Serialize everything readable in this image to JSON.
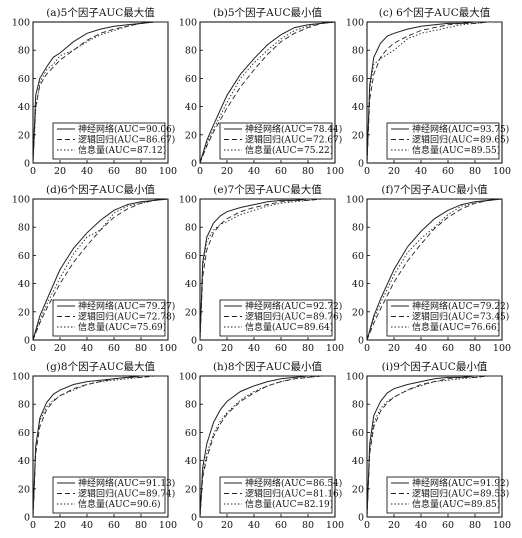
{
  "chart_data": [
    {
      "type": "line",
      "title": "(a)5个因子AUC最大值",
      "xlim": [
        0,
        100
      ],
      "ylim": [
        0,
        100
      ],
      "xticks": [
        "0",
        "20",
        "40",
        "60",
        "80",
        "100"
      ],
      "yticks": [
        "0",
        "20",
        "40",
        "60",
        "80",
        "100"
      ],
      "legend_position": "bottom-right",
      "series": [
        {
          "name": "神经网络(AUC=90.06)",
          "x": [
            0,
            2,
            5,
            10,
            15,
            20,
            30,
            40,
            50,
            60,
            70,
            80,
            90,
            100
          ],
          "y": [
            0,
            48,
            60,
            68,
            75,
            78,
            86,
            92,
            95,
            97,
            98,
            99,
            100,
            100
          ]
        },
        {
          "name": "逻辑回归(AUC=86.67)",
          "x": [
            0,
            2,
            5,
            10,
            15,
            20,
            30,
            40,
            50,
            60,
            70,
            80,
            90,
            100
          ],
          "y": [
            0,
            40,
            55,
            63,
            68,
            73,
            80,
            87,
            92,
            95,
            97,
            99,
            100,
            100
          ]
        },
        {
          "name": "信息量(AUC=87.12)",
          "x": [
            0,
            2,
            5,
            10,
            15,
            20,
            30,
            40,
            50,
            60,
            70,
            80,
            90,
            100
          ],
          "y": [
            0,
            38,
            57,
            66,
            70,
            76,
            80,
            86,
            91,
            94,
            97,
            99,
            100,
            100
          ]
        }
      ]
    },
    {
      "type": "line",
      "title": "(b)5个因子AUC最小值",
      "xlim": [
        0,
        100
      ],
      "ylim": [
        0,
        100
      ],
      "xticks": [
        "0",
        "20",
        "40",
        "60",
        "80",
        "100"
      ],
      "yticks": [
        "0",
        "20",
        "40",
        "60",
        "80",
        "100"
      ],
      "legend_position": "bottom-right",
      "series": [
        {
          "name": "神经网络(AUC=78.44)",
          "x": [
            0,
            5,
            10,
            20,
            30,
            40,
            50,
            60,
            70,
            80,
            90,
            100
          ],
          "y": [
            0,
            16,
            27,
            48,
            63,
            74,
            84,
            91,
            96,
            98,
            99,
            100
          ]
        },
        {
          "name": "逻辑回归(AUC=72.67)",
          "x": [
            0,
            5,
            10,
            20,
            30,
            40,
            50,
            60,
            70,
            80,
            90,
            100
          ],
          "y": [
            0,
            12,
            22,
            39,
            54,
            66,
            77,
            86,
            92,
            96,
            99,
            100
          ]
        },
        {
          "name": "信息量(AUC=75.22)",
          "x": [
            0,
            5,
            10,
            20,
            30,
            40,
            50,
            60,
            70,
            80,
            90,
            100
          ],
          "y": [
            0,
            14,
            24,
            43,
            60,
            71,
            80,
            88,
            94,
            97,
            99,
            100
          ]
        }
      ]
    },
    {
      "type": "line",
      "title": "(c) 6个因子AUC最大值",
      "xlim": [
        0,
        100
      ],
      "ylim": [
        0,
        100
      ],
      "xticks": [
        "0",
        "20",
        "40",
        "60",
        "80",
        "100"
      ],
      "yticks": [
        "0",
        "20",
        "40",
        "60",
        "80",
        "100"
      ],
      "legend_position": "bottom-right",
      "series": [
        {
          "name": "神经网络(AUC=93.75)",
          "x": [
            0,
            2,
            5,
            10,
            15,
            20,
            30,
            40,
            50,
            60,
            70,
            80,
            90,
            100
          ],
          "y": [
            0,
            55,
            75,
            85,
            90,
            92,
            95,
            97,
            98,
            99,
            99,
            100,
            100,
            100
          ]
        },
        {
          "name": "逻辑回归(AUC=89.65)",
          "x": [
            0,
            2,
            5,
            10,
            15,
            20,
            30,
            40,
            50,
            60,
            70,
            80,
            90,
            100
          ],
          "y": [
            0,
            45,
            63,
            75,
            81,
            85,
            90,
            94,
            96,
            98,
            99,
            99,
            100,
            100
          ]
        },
        {
          "name": "信息量(AUC=89.55)",
          "x": [
            0,
            2,
            5,
            10,
            15,
            20,
            30,
            40,
            50,
            60,
            70,
            80,
            90,
            100
          ],
          "y": [
            0,
            52,
            70,
            74,
            77,
            80,
            88,
            92,
            94,
            96,
            98,
            99,
            100,
            100
          ]
        }
      ]
    },
    {
      "type": "line",
      "title": "(d)6个因子AUC最小值",
      "xlim": [
        0,
        100
      ],
      "ylim": [
        0,
        100
      ],
      "xticks": [
        "0",
        "20",
        "40",
        "60",
        "80",
        "100"
      ],
      "yticks": [
        "0",
        "20",
        "40",
        "60",
        "80",
        "100"
      ],
      "legend_position": "bottom-right",
      "series": [
        {
          "name": "神经网络(AUC=79.27)",
          "x": [
            0,
            5,
            10,
            20,
            30,
            40,
            50,
            60,
            70,
            80,
            90,
            100
          ],
          "y": [
            0,
            17,
            28,
            50,
            65,
            76,
            85,
            92,
            96,
            98,
            99,
            100
          ]
        },
        {
          "name": "逻辑回归(AUC=72.78)",
          "x": [
            0,
            5,
            10,
            20,
            30,
            40,
            50,
            60,
            70,
            80,
            90,
            100
          ],
          "y": [
            0,
            12,
            22,
            40,
            55,
            67,
            78,
            87,
            93,
            97,
            99,
            100
          ]
        },
        {
          "name": "信息量(AUC=75.69)",
          "x": [
            0,
            5,
            10,
            20,
            30,
            40,
            50,
            60,
            70,
            80,
            90,
            100
          ],
          "y": [
            0,
            14,
            25,
            44,
            61,
            73,
            78,
            90,
            95,
            97,
            99,
            100
          ]
        }
      ]
    },
    {
      "type": "line",
      "title": "(e)7个因子AUC最大值",
      "xlim": [
        0,
        100
      ],
      "ylim": [
        0,
        100
      ],
      "xticks": [
        "0",
        "20",
        "40",
        "60",
        "80",
        "100"
      ],
      "yticks": [
        "0",
        "20",
        "40",
        "60",
        "80",
        "100"
      ],
      "legend_position": "bottom-right",
      "series": [
        {
          "name": "神经网络(AUC=92.72)",
          "x": [
            0,
            2,
            5,
            10,
            15,
            20,
            30,
            40,
            50,
            60,
            70,
            80,
            90,
            100
          ],
          "y": [
            0,
            55,
            73,
            83,
            88,
            91,
            94,
            96,
            98,
            99,
            99,
            100,
            100,
            100
          ]
        },
        {
          "name": "逻辑回归(AUC=89.76)",
          "x": [
            0,
            2,
            5,
            10,
            15,
            20,
            30,
            40,
            50,
            60,
            70,
            80,
            90,
            100
          ],
          "y": [
            0,
            45,
            64,
            76,
            82,
            86,
            91,
            94,
            96,
            98,
            99,
            99,
            100,
            100
          ]
        },
        {
          "name": "信息量(AUC=89.64)",
          "x": [
            0,
            2,
            5,
            10,
            15,
            20,
            30,
            40,
            50,
            60,
            70,
            80,
            90,
            100
          ],
          "y": [
            0,
            52,
            70,
            78,
            82,
            84,
            89,
            92,
            95,
            97,
            98,
            99,
            100,
            100
          ]
        }
      ]
    },
    {
      "type": "line",
      "title": "(f)7个因子AUC最小值",
      "xlim": [
        0,
        100
      ],
      "ylim": [
        0,
        100
      ],
      "xticks": [
        "0",
        "20",
        "40",
        "60",
        "80",
        "100"
      ],
      "yticks": [
        "0",
        "20",
        "40",
        "60",
        "80",
        "100"
      ],
      "legend_position": "bottom-right",
      "series": [
        {
          "name": "神经网络(AUC=79.22)",
          "x": [
            0,
            5,
            10,
            20,
            30,
            40,
            50,
            60,
            70,
            80,
            90,
            100
          ],
          "y": [
            0,
            17,
            29,
            50,
            66,
            77,
            86,
            92,
            96,
            98,
            99,
            100
          ]
        },
        {
          "name": "逻辑回归(AUC=73.45)",
          "x": [
            0,
            5,
            10,
            20,
            30,
            40,
            50,
            60,
            70,
            80,
            90,
            100
          ],
          "y": [
            0,
            12,
            22,
            41,
            56,
            68,
            79,
            87,
            93,
            97,
            99,
            100
          ]
        },
        {
          "name": "信息量(AUC=76.66)",
          "x": [
            0,
            5,
            10,
            20,
            30,
            40,
            50,
            60,
            70,
            80,
            90,
            100
          ],
          "y": [
            0,
            15,
            26,
            46,
            62,
            72,
            80,
            89,
            95,
            97,
            99,
            100
          ]
        }
      ]
    },
    {
      "type": "line",
      "title": "(g)8个因子AUC最大值",
      "xlim": [
        0,
        100
      ],
      "ylim": [
        0,
        100
      ],
      "xticks": [
        "0",
        "20",
        "40",
        "60",
        "80",
        "100"
      ],
      "yticks": [
        "0",
        "20",
        "40",
        "60",
        "80",
        "100"
      ],
      "legend_position": "bottom-right",
      "series": [
        {
          "name": "神经网络(AUC=91.13)",
          "x": [
            0,
            2,
            5,
            10,
            15,
            20,
            30,
            40,
            50,
            60,
            70,
            80,
            90,
            100
          ],
          "y": [
            0,
            50,
            70,
            81,
            87,
            90,
            94,
            96,
            97,
            98,
            99,
            100,
            100,
            100
          ]
        },
        {
          "name": "逻辑回归(AUC=89.74)",
          "x": [
            0,
            2,
            5,
            10,
            15,
            20,
            30,
            40,
            50,
            60,
            70,
            80,
            90,
            100
          ],
          "y": [
            0,
            45,
            64,
            76,
            82,
            86,
            91,
            94,
            96,
            98,
            99,
            99,
            100,
            100
          ]
        },
        {
          "name": "信息量(AUC=90.6)",
          "x": [
            0,
            2,
            5,
            10,
            15,
            20,
            30,
            40,
            50,
            60,
            70,
            80,
            90,
            100
          ],
          "y": [
            0,
            50,
            68,
            78,
            83,
            86,
            90,
            94,
            96,
            97,
            98,
            99,
            100,
            100
          ]
        }
      ]
    },
    {
      "type": "line",
      "title": "(h)8个因子AUC最小值",
      "xlim": [
        0,
        100
      ],
      "ylim": [
        0,
        100
      ],
      "xticks": [
        "0",
        "20",
        "40",
        "60",
        "80",
        "100"
      ],
      "yticks": [
        "0",
        "20",
        "40",
        "60",
        "80",
        "100"
      ],
      "legend_position": "bottom-right",
      "series": [
        {
          "name": "神经网络(AUC=86.54)",
          "x": [
            0,
            2,
            5,
            10,
            15,
            20,
            30,
            40,
            50,
            60,
            70,
            80,
            90,
            100
          ],
          "y": [
            0,
            35,
            52,
            67,
            76,
            82,
            89,
            93,
            96,
            98,
            99,
            100,
            100,
            100
          ]
        },
        {
          "name": "逻辑回归(AUC=81.16)",
          "x": [
            0,
            2,
            5,
            10,
            15,
            20,
            30,
            40,
            50,
            60,
            70,
            80,
            90,
            100
          ],
          "y": [
            0,
            28,
            42,
            57,
            66,
            73,
            82,
            88,
            93,
            96,
            98,
            99,
            100,
            100
          ]
        },
        {
          "name": "信息量(AUC=82.19)",
          "x": [
            0,
            2,
            5,
            10,
            15,
            20,
            30,
            40,
            50,
            60,
            70,
            80,
            90,
            100
          ],
          "y": [
            0,
            30,
            45,
            59,
            68,
            74,
            83,
            89,
            93,
            96,
            98,
            99,
            100,
            100
          ]
        }
      ]
    },
    {
      "type": "line",
      "title": "(i)9个因子AUC最小值",
      "xlim": [
        0,
        100
      ],
      "ylim": [
        0,
        100
      ],
      "xticks": [
        "0",
        "20",
        "40",
        "60",
        "80",
        "100"
      ],
      "yticks": [
        "0",
        "20",
        "40",
        "60",
        "80",
        "100"
      ],
      "legend_position": "bottom-right",
      "series": [
        {
          "name": "神经网络(AUC=91.92)",
          "x": [
            0,
            2,
            5,
            10,
            15,
            20,
            30,
            40,
            50,
            60,
            70,
            80,
            90,
            100
          ],
          "y": [
            0,
            52,
            72,
            82,
            88,
            91,
            94,
            96,
            98,
            99,
            99,
            100,
            100,
            100
          ]
        },
        {
          "name": "逻辑回归(AUC=89.53)",
          "x": [
            0,
            2,
            5,
            10,
            15,
            20,
            30,
            40,
            50,
            60,
            70,
            80,
            90,
            100
          ],
          "y": [
            0,
            45,
            64,
            75,
            81,
            85,
            90,
            94,
            96,
            98,
            99,
            99,
            100,
            100
          ]
        },
        {
          "name": "信息量(AUC=89.85)",
          "x": [
            0,
            2,
            5,
            10,
            15,
            20,
            30,
            40,
            50,
            60,
            70,
            80,
            90,
            100
          ],
          "y": [
            0,
            48,
            67,
            77,
            82,
            85,
            90,
            93,
            96,
            97,
            98,
            99,
            100,
            100
          ]
        }
      ]
    }
  ],
  "style": {
    "line_color": "#222222",
    "axis_color": "#000000",
    "series_dash": [
      "none",
      "5,3",
      "1.5,2"
    ]
  }
}
